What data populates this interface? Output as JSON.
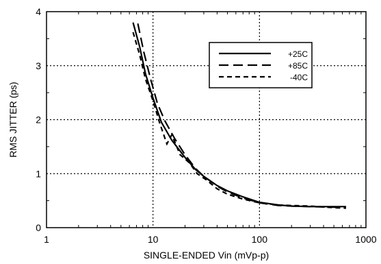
{
  "chart_data": {
    "type": "line",
    "xlabel": "SINGLE-ENDED Vin (mVp-p)",
    "ylabel": "RMS JITTER (ps)",
    "xscale": "log",
    "xlim": [
      1,
      1000
    ],
    "ylim": [
      0,
      4
    ],
    "xticks": [
      "1",
      "10",
      "100",
      "1000"
    ],
    "yticks": [
      "0",
      "1",
      "2",
      "3",
      "4"
    ],
    "grid": true,
    "legend_position": "top-right",
    "series": [
      {
        "name": "+25C",
        "style": "solid",
        "x": [
          6.5,
          7.5,
          8.5,
          10,
          12,
          15,
          20,
          25,
          30,
          40,
          50,
          70,
          100,
          150,
          200,
          300,
          500,
          650
        ],
        "y": [
          3.8,
          3.35,
          2.85,
          2.4,
          1.95,
          1.62,
          1.3,
          1.08,
          0.95,
          0.78,
          0.68,
          0.57,
          0.47,
          0.42,
          0.4,
          0.39,
          0.39,
          0.39
        ]
      },
      {
        "name": "+85C",
        "style": "long-dash",
        "x": [
          7.2,
          8.2,
          9.5,
          11,
          13,
          16,
          20,
          25,
          30,
          40,
          50,
          70,
          100,
          150,
          200,
          300,
          500,
          650
        ],
        "y": [
          3.78,
          3.25,
          2.75,
          2.3,
          1.97,
          1.65,
          1.35,
          1.1,
          0.95,
          0.77,
          0.66,
          0.55,
          0.46,
          0.41,
          0.4,
          0.39,
          0.38,
          0.38
        ]
      },
      {
        "name": "-40C",
        "style": "short-dash",
        "x": [
          6.5,
          7.5,
          8.5,
          10,
          11.5,
          13.5,
          15,
          18,
          22,
          26,
          32,
          40,
          50,
          70,
          100,
          150,
          200,
          300,
          500,
          650
        ],
        "y": [
          3.62,
          3.2,
          2.75,
          2.35,
          1.95,
          1.55,
          1.72,
          1.35,
          1.2,
          1.0,
          0.88,
          0.72,
          0.62,
          0.53,
          0.46,
          0.42,
          0.41,
          0.4,
          0.37,
          0.36
        ]
      }
    ]
  }
}
